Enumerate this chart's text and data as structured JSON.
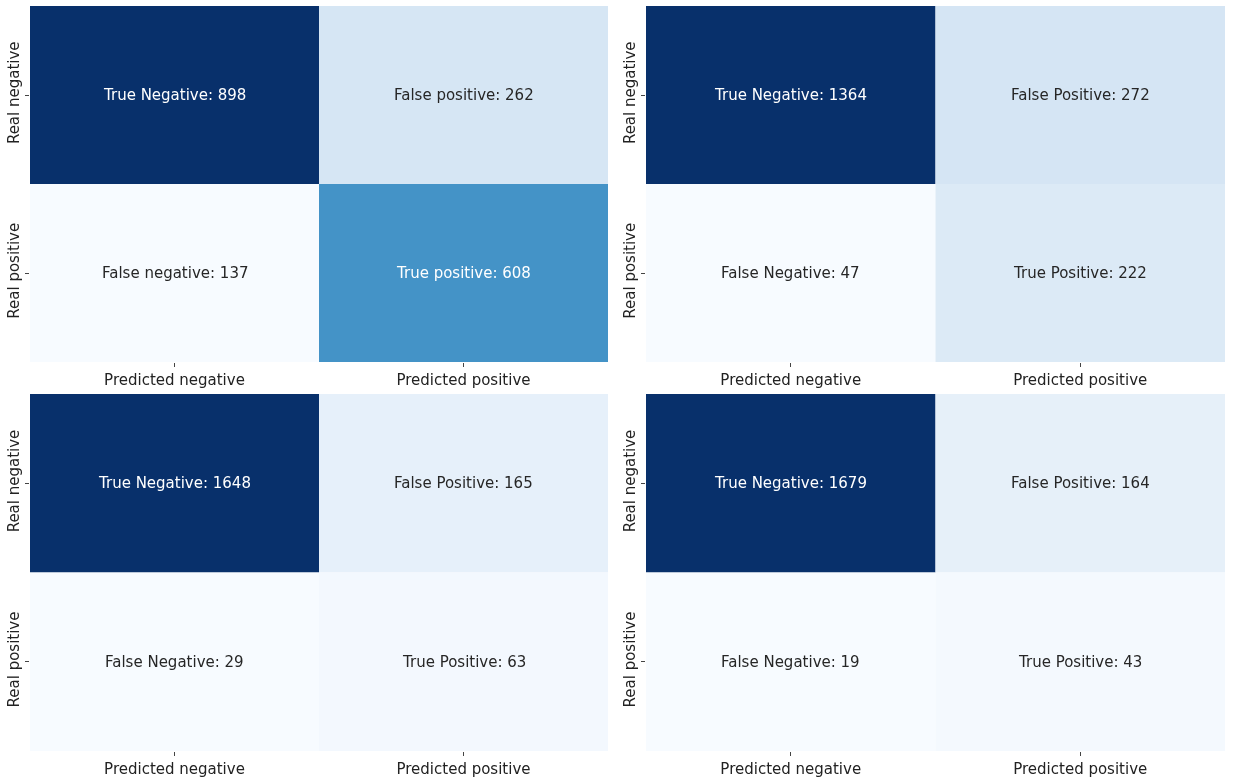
{
  "chart_data": [
    {
      "type": "heatmap",
      "categories": [
        "Predicted negative",
        "Predicted positive"
      ],
      "y_categories": [
        "Real negative",
        "Real positive"
      ],
      "cells": [
        [
          898,
          262
        ],
        [
          137,
          608
        ]
      ],
      "cell_labels": [
        [
          "True Negative: 898",
          "False positive: 262"
        ],
        [
          "False negative: 137",
          "True positive: 608"
        ]
      ]
    },
    {
      "type": "heatmap",
      "categories": [
        "Predicted negative",
        "Predicted positive"
      ],
      "y_categories": [
        "Real negative",
        "Real positive"
      ],
      "cells": [
        [
          1364,
          272
        ],
        [
          47,
          222
        ]
      ],
      "cell_labels": [
        [
          "True Negative: 1364",
          "False Positive: 272"
        ],
        [
          "False Negative: 47",
          "True Positive: 222"
        ]
      ]
    },
    {
      "type": "heatmap",
      "categories": [
        "Predicted negative",
        "Predicted positive"
      ],
      "y_categories": [
        "Real negative",
        "Real positive"
      ],
      "cells": [
        [
          1648,
          165
        ],
        [
          29,
          63
        ]
      ],
      "cell_labels": [
        [
          "True Negative: 1648",
          "False Positive: 165"
        ],
        [
          "False Negative: 29",
          "True Positive: 63"
        ]
      ]
    },
    {
      "type": "heatmap",
      "categories": [
        "Predicted negative",
        "Predicted positive"
      ],
      "y_categories": [
        "Real negative",
        "Real positive"
      ],
      "cells": [
        [
          1679,
          164
        ],
        [
          19,
          43
        ]
      ],
      "cell_labels": [
        [
          "True Negative: 1679",
          "False Positive: 164"
        ],
        [
          "False Negative: 19",
          "True Positive: 43"
        ]
      ]
    }
  ]
}
